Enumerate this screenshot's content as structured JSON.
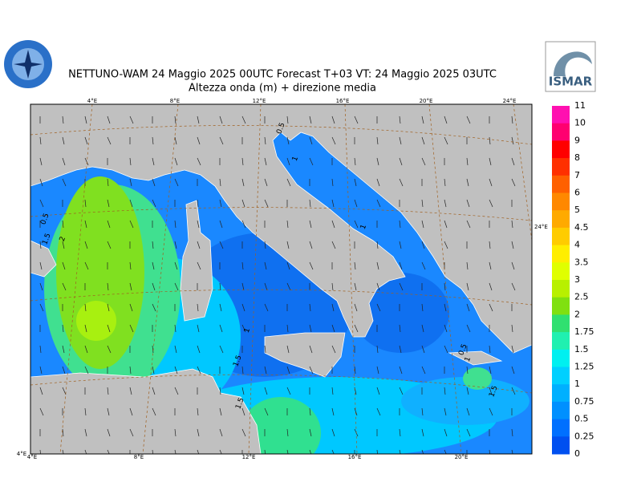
{
  "header": {
    "title": "NETTUNO-WAM  24   Maggio  2025 00UTC Forecast T+03 VT: 24   Maggio  2025 03UTC",
    "subtitle": "Altezza onda (m) + direzione media"
  },
  "logo": {
    "text": "ISMAR"
  },
  "map": {
    "top_labels": [
      "4°E",
      "8°E",
      "12°E",
      "16°E",
      "20°E",
      "24°E"
    ],
    "bottom_labels": [
      "4°E",
      "4°E",
      "8°E",
      "12°E",
      "16°E",
      "20°E"
    ],
    "right_labels": [
      "24°E"
    ],
    "contour_labels": [
      "0.5",
      "1",
      "1",
      "0.5",
      "1.5",
      "2",
      "1",
      "1.5",
      "1.5",
      "0.5",
      "1",
      "1.5"
    ]
  },
  "colorbar": {
    "levels": [
      11,
      10,
      9,
      8,
      7,
      6,
      5,
      4.5,
      4,
      3.5,
      3,
      2.5,
      2,
      1.75,
      1.5,
      1.25,
      1,
      0.75,
      0.5,
      0.25,
      0
    ],
    "colors": [
      "#ff10b0",
      "#ff0070",
      "#ff0000",
      "#ff3000",
      "#ff6000",
      "#ff8800",
      "#ffaa00",
      "#ffcc00",
      "#ffee00",
      "#e0ff00",
      "#b8f000",
      "#80e010",
      "#30e070",
      "#20f0b0",
      "#00f0f0",
      "#00d0ff",
      "#00b0ff",
      "#0090ff",
      "#0070ff",
      "#0050f0"
    ]
  }
}
